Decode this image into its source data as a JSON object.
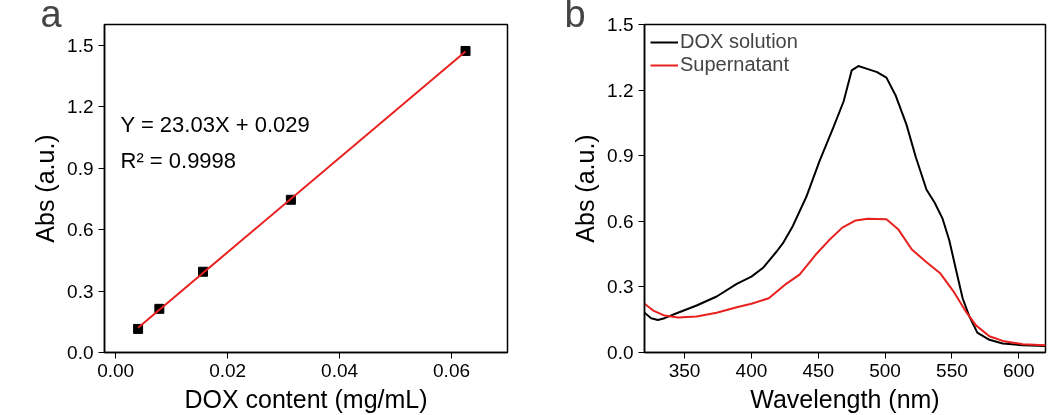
{
  "chart_data": [
    {
      "type": "scatter",
      "title": "a",
      "xlabel": "DOX content (mg/mL)",
      "ylabel": "Abs (a.u.)",
      "annotations": [
        "Y = 23.03X + 0.029",
        "R² = 0.9998"
      ],
      "xlim": [
        -0.002,
        0.07
      ],
      "ylim": [
        0,
        1.6
      ],
      "xticks": [
        {
          "value": 0,
          "label": "0.00"
        },
        {
          "value": 0.02,
          "label": "0.02"
        },
        {
          "value": 0.04,
          "label": "0.04"
        },
        {
          "value": 0.06,
          "label": "0.06"
        }
      ],
      "yticks": [
        {
          "value": 0,
          "label": "0.0"
        },
        0.3,
        0.6,
        0.9,
        1.2,
        1.5
      ],
      "grid": false,
      "legend": false,
      "series": [
        {
          "type": "scatter",
          "marker": "square",
          "color": "#000000",
          "x": [
            0.004,
            0.0078,
            0.0156,
            0.0313,
            0.0625
          ],
          "values": [
            0.115,
            0.213,
            0.394,
            0.745,
            1.471
          ]
        },
        {
          "type": "line",
          "marker": "none",
          "color": "#e8201e",
          "x": [
            0.004,
            0.0625
          ],
          "values": [
            0.121,
            1.468
          ]
        }
      ]
    },
    {
      "type": "line",
      "title": "b",
      "xlabel": "Wavelength (nm)",
      "ylabel": "Abs (a.u.)",
      "xlim": [
        320,
        620
      ],
      "ylim": [
        0,
        1.5
      ],
      "xticks": [
        350,
        400,
        450,
        500,
        550,
        600
      ],
      "yticks": [
        {
          "value": 0,
          "label": "0.0"
        },
        0.3,
        0.6,
        0.9,
        1.2,
        1.5
      ],
      "grid": false,
      "legend": "top left",
      "marker": "none",
      "line_style": "solid",
      "series": [
        {
          "name": "DOX solution",
          "color": "#000000",
          "x": [
            320,
            325,
            330,
            335,
            345,
            359,
            374,
            389,
            400,
            409,
            419,
            424,
            431,
            441,
            451,
            461,
            469,
            475,
            480,
            486,
            494,
            501,
            508,
            516,
            523,
            531,
            537,
            543,
            548,
            553,
            558,
            563,
            569,
            578,
            588,
            603,
            620
          ],
          "values": [
            0.182,
            0.157,
            0.149,
            0.157,
            0.182,
            0.215,
            0.256,
            0.314,
            0.347,
            0.389,
            0.463,
            0.504,
            0.579,
            0.711,
            0.876,
            1.025,
            1.149,
            1.29,
            1.31,
            1.298,
            1.282,
            1.257,
            1.174,
            1.042,
            0.893,
            0.744,
            0.686,
            0.612,
            0.513,
            0.38,
            0.248,
            0.165,
            0.091,
            0.058,
            0.041,
            0.033,
            0.03
          ]
        },
        {
          "name": "Supernatant",
          "color": "#e8201e",
          "x": [
            320,
            327,
            335,
            345,
            359,
            374,
            389,
            400,
            413,
            426,
            436,
            448,
            458,
            468,
            478,
            487,
            501,
            510,
            520,
            531,
            541,
            551,
            561,
            568,
            578,
            588,
            603,
            620
          ],
          "values": [
            0.223,
            0.19,
            0.169,
            0.16,
            0.165,
            0.182,
            0.207,
            0.223,
            0.248,
            0.314,
            0.356,
            0.447,
            0.513,
            0.571,
            0.604,
            0.612,
            0.609,
            0.562,
            0.471,
            0.413,
            0.364,
            0.281,
            0.182,
            0.124,
            0.074,
            0.053,
            0.038,
            0.033
          ]
        }
      ]
    }
  ]
}
